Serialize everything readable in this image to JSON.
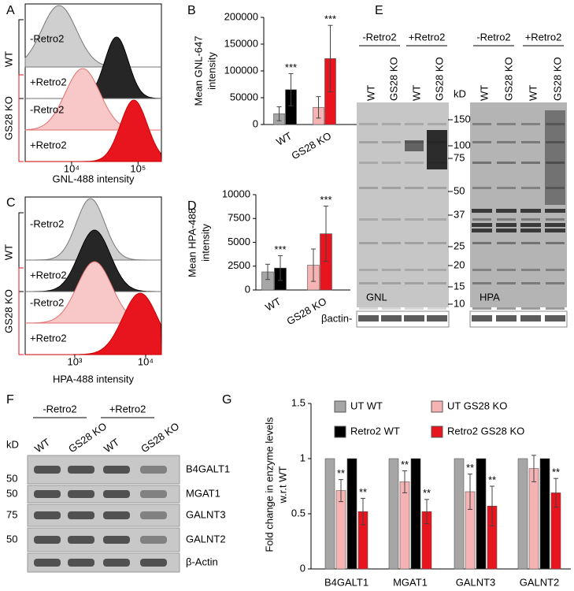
{
  "chart_data": [
    {
      "type": "bar",
      "panel": "B",
      "ylabel": [
        "Mean GNL-647",
        "intensity"
      ],
      "categories": [
        "WT",
        "GS28 KO"
      ],
      "series": [
        {
          "colors": [
            "#a6a6a6",
            "#f6b3b3"
          ],
          "values": [
            20000,
            32000
          ],
          "errors": [
            13000,
            20000
          ],
          "significance": [
            null,
            null
          ]
        },
        {
          "colors": [
            "#000000",
            "#e8141e"
          ],
          "values": [
            65000,
            123000
          ],
          "errors": [
            30000,
            62000
          ],
          "significance": [
            "***",
            "***"
          ]
        }
      ],
      "ylim": [
        0,
        200000
      ],
      "yticks": [
        0,
        50000,
        100000,
        150000,
        200000
      ]
    },
    {
      "type": "bar",
      "panel": "D",
      "ylabel": [
        "Mean HPA-488",
        "intensity"
      ],
      "categories": [
        "WT",
        "GS28 KO"
      ],
      "series": [
        {
          "colors": [
            "#a6a6a6",
            "#f6b3b3"
          ],
          "values": [
            1900,
            2600
          ],
          "errors": [
            800,
            1700
          ],
          "significance": [
            null,
            null
          ]
        },
        {
          "colors": [
            "#000000",
            "#e8141e"
          ],
          "values": [
            2300,
            5900
          ],
          "errors": [
            1300,
            2900
          ],
          "significance": [
            "***",
            "***"
          ]
        }
      ],
      "ylim": [
        0,
        10000
      ],
      "yticks": [
        0,
        2500,
        5000,
        7500,
        10000
      ]
    },
    {
      "type": "bar",
      "panel": "G",
      "ylabel": [
        "Fold change in enzyme levels",
        "w.r.t WT"
      ],
      "categories": [
        "B4GALT1",
        "MGAT1",
        "GALNT3",
        "GALNT2"
      ],
      "series": [
        {
          "name": "UT WT",
          "color": "#a6a6a6",
          "values": [
            1,
            1,
            1,
            1
          ],
          "errors": [
            null,
            null,
            null,
            null
          ],
          "significance": [
            null,
            null,
            null,
            null
          ]
        },
        {
          "name": "UT GS28 KO",
          "color": "#f6b3b3",
          "values": [
            0.71,
            0.79,
            0.7,
            0.91
          ],
          "errors": [
            0.1,
            0.1,
            0.16,
            0.12
          ],
          "significance": [
            "**",
            "**",
            "**",
            null
          ]
        },
        {
          "name": "Retro2 WT",
          "color": "#000000",
          "values": [
            1,
            1,
            1,
            1
          ],
          "errors": [
            null,
            null,
            null,
            null
          ],
          "significance": [
            null,
            null,
            null,
            null
          ]
        },
        {
          "name": "Retro2 GS28 KO",
          "color": "#e8141e",
          "values": [
            0.52,
            0.52,
            0.57,
            0.69
          ],
          "errors": [
            0.12,
            0.11,
            0.18,
            0.13
          ],
          "significance": [
            "**",
            "**",
            "**",
            "**"
          ]
        }
      ],
      "ylim": [
        0,
        1.5
      ],
      "yticks": [
        0,
        0.5,
        1,
        1.5
      ]
    }
  ],
  "histograms": [
    {
      "panel": "A",
      "xlabel": "GNL-488 intensity",
      "xlim": [
        2000,
        225000
      ],
      "xticks": [
        {
          "value": 10000,
          "label": "10⁴"
        },
        {
          "value": 100000,
          "label": "10⁵"
        }
      ],
      "groups": [
        "WT",
        "GS28 KO"
      ],
      "rows": [
        "-Retro2",
        "+Retro2",
        "-Retro2",
        "+Retro2"
      ]
    },
    {
      "panel": "C",
      "xlabel": "HPA-488 intensity",
      "xlim": [
        200,
        16700
      ],
      "xticks": [
        {
          "value": 1000,
          "label": "10³"
        },
        {
          "value": 10000,
          "label": "10⁴"
        }
      ],
      "groups": [
        "WT",
        "GS28 KO"
      ],
      "rows": [
        "-Retro2",
        "+Retro2",
        "-Retro2",
        "+Retro2"
      ]
    }
  ],
  "blot_E": {
    "panel": "E",
    "conditions": [
      "-Retro2",
      "+Retro2"
    ],
    "lanes": [
      "WT",
      "GS28 KO",
      "WT",
      "GS28 KO"
    ],
    "kd_label": "kD",
    "markers": [
      150,
      100,
      75,
      50,
      37,
      25,
      20,
      15,
      10
    ],
    "blots": [
      "GNL",
      "HPA"
    ],
    "loading": "βactin-"
  },
  "blot_F": {
    "panel": "F",
    "conditions": [
      "-Retro2",
      "+Retro2"
    ],
    "lanes": [
      "WT",
      "GS28 KO",
      "WT",
      "GS28 KO"
    ],
    "kd_label": "kD",
    "rows": [
      {
        "label": "B4GALT1",
        "marker": 50
      },
      {
        "label": "MGAT1",
        "marker": 50
      },
      {
        "label": "GALNT3",
        "marker": 75
      },
      {
        "label": "GALNT2",
        "marker": 50
      },
      {
        "label": "β-Actin"
      }
    ]
  }
}
